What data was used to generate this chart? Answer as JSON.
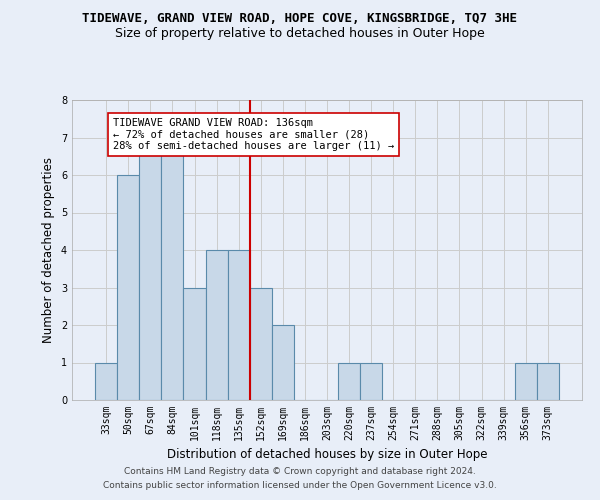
{
  "title": "TIDEWAVE, GRAND VIEW ROAD, HOPE COVE, KINGSBRIDGE, TQ7 3HE",
  "subtitle": "Size of property relative to detached houses in Outer Hope",
  "xlabel": "Distribution of detached houses by size in Outer Hope",
  "ylabel": "Number of detached properties",
  "categories": [
    "33sqm",
    "50sqm",
    "67sqm",
    "84sqm",
    "101sqm",
    "118sqm",
    "135sqm",
    "152sqm",
    "169sqm",
    "186sqm",
    "203sqm",
    "220sqm",
    "237sqm",
    "254sqm",
    "271sqm",
    "288sqm",
    "305sqm",
    "322sqm",
    "339sqm",
    "356sqm",
    "373sqm"
  ],
  "values": [
    1,
    6,
    7,
    7,
    3,
    4,
    4,
    3,
    2,
    0,
    0,
    1,
    1,
    0,
    0,
    0,
    0,
    0,
    0,
    1,
    1
  ],
  "bar_color": "#c8d8e8",
  "bar_edgecolor": "#5a8aaa",
  "bar_linewidth": 0.8,
  "grid_color": "#cccccc",
  "background_color": "#e8eef8",
  "ref_line_x": 6.5,
  "ref_line_color": "#cc0000",
  "annotation_text": "TIDEWAVE GRAND VIEW ROAD: 136sqm\n← 72% of detached houses are smaller (28)\n28% of semi-detached houses are larger (11) →",
  "annotation_box_facecolor": "#ffffff",
  "annotation_box_edgecolor": "#cc0000",
  "ylim": [
    0,
    8
  ],
  "yticks": [
    0,
    1,
    2,
    3,
    4,
    5,
    6,
    7,
    8
  ],
  "footer1": "Contains HM Land Registry data © Crown copyright and database right 2024.",
  "footer2": "Contains public sector information licensed under the Open Government Licence v3.0.",
  "title_fontsize": 9,
  "subtitle_fontsize": 9,
  "xlabel_fontsize": 8.5,
  "ylabel_fontsize": 8.5,
  "tick_fontsize": 7,
  "annotation_fontsize": 7.5,
  "footer_fontsize": 6.5
}
